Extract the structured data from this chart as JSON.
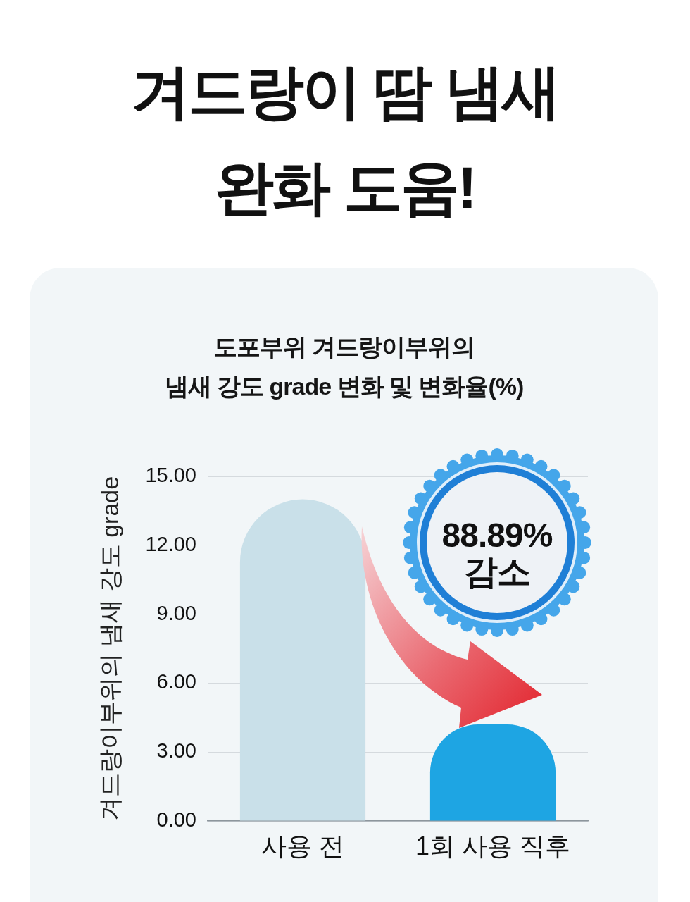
{
  "chart_data": {
    "type": "bar",
    "title": "겨드랑이 땀 냄새\n완화 도움!",
    "subtitle": "도포부위 겨드랑이부위의\n냄새 강도 grade 변화 및 변화율(%)",
    "ylabel": "겨드랑이부위의 냄새 강도 grade",
    "categories": [
      "사용 전",
      "1회 사용 직후"
    ],
    "values": [
      14.0,
      4.2
    ],
    "colors": [
      "#c9e0e9",
      "#1ea5e3"
    ],
    "ylim": [
      0,
      15
    ],
    "yticks": [
      {
        "value": 0,
        "label": "0.00"
      },
      {
        "value": 3,
        "label": "3.00"
      },
      {
        "value": 6,
        "label": "6.00"
      },
      {
        "value": 9,
        "label": "9.00"
      },
      {
        "value": 12,
        "label": "12.00"
      },
      {
        "value": 15,
        "label": "15.00"
      }
    ],
    "grid": "y",
    "annotations": [
      "88.89%\n감소"
    ]
  }
}
